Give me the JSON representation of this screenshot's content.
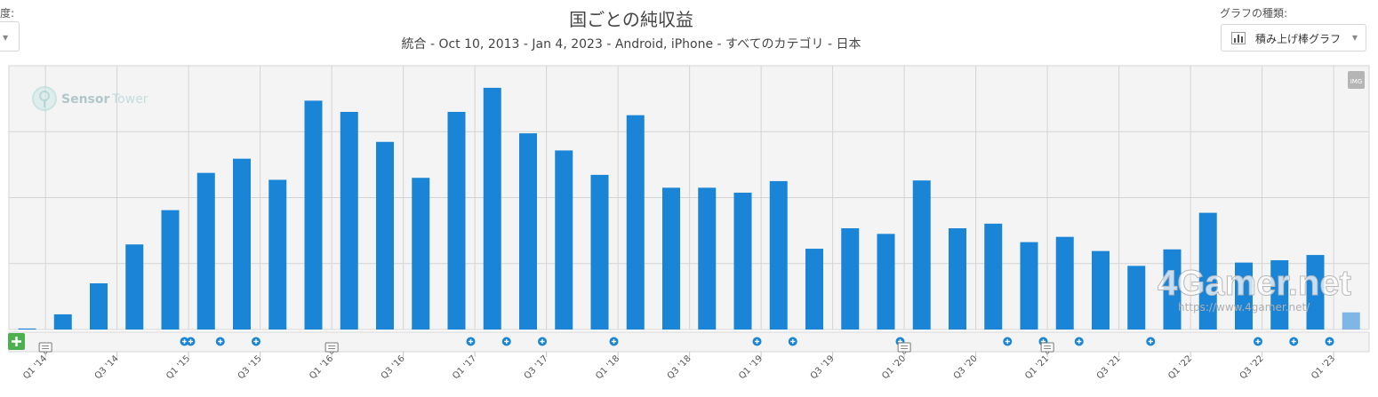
{
  "left_control": {
    "label": "度:"
  },
  "chart_type_control": {
    "label": "グラフの種類:",
    "value": "積み上げ棒グラフ",
    "icon": "bar-chart-icon"
  },
  "export_button": {
    "label": "IMG"
  },
  "watermarks": {
    "sensor_tower_a": "Sensor",
    "sensor_tower_b": "Tower",
    "fourgamer": "4Gamer.net",
    "fourgamer_url": "https://www.4gamer.net/"
  },
  "chart_data": {
    "type": "bar",
    "title": "国ごとの純収益",
    "subtitle": "統合 - Oct 10, 2013 - Jan 4, 2023 - Android, iPhone - すべてのカテゴリ - 日本",
    "categories": [
      "Q4 '13",
      "Q1 '14",
      "Q2 '14",
      "Q3 '14",
      "Q4 '14",
      "Q1 '15",
      "Q2 '15",
      "Q3 '15",
      "Q4 '15",
      "Q1 '16",
      "Q2 '16",
      "Q3 '16",
      "Q4 '16",
      "Q1 '17",
      "Q2 '17",
      "Q3 '17",
      "Q4 '17",
      "Q1 '18",
      "Q2 '18",
      "Q3 '18",
      "Q4 '18",
      "Q1 '19",
      "Q2 '19",
      "Q3 '19",
      "Q4 '19",
      "Q1 '20",
      "Q2 '20",
      "Q3 '20",
      "Q4 '20",
      "Q1 '21",
      "Q2 '21",
      "Q3 '21",
      "Q4 '21",
      "Q1 '22",
      "Q2 '22",
      "Q3 '22",
      "Q4 '22",
      "Q1 '23"
    ],
    "values": [
      0.3,
      4.6,
      14.0,
      25.8,
      36.2,
      47.5,
      51.8,
      45.4,
      69.4,
      66.0,
      56.9,
      46.0,
      66.0,
      73.3,
      59.5,
      54.3,
      46.9,
      65.0,
      43.0,
      43.0,
      41.5,
      45.0,
      24.5,
      30.7,
      29.0,
      45.2,
      30.7,
      32.1,
      26.5,
      28.1,
      23.8,
      19.3,
      24.3,
      35.4,
      20.3,
      21.0,
      22.6,
      5.2
    ],
    "partial_last_category": true,
    "x_tick_labels": [
      "Q1 '14",
      "Q3 '14",
      "Q1 '15",
      "Q3 '15",
      "Q1 '16",
      "Q3 '16",
      "Q1 '17",
      "Q3 '17",
      "Q1 '18",
      "Q3 '18",
      "Q1 '19",
      "Q3 '19",
      "Q1 '20",
      "Q3 '20",
      "Q1 '21",
      "Q3 '21",
      "Q1 '22",
      "Q3 '22",
      "Q1 '23"
    ],
    "ylim": [
      0,
      80
    ],
    "y_gridlines": [
      20,
      40,
      60,
      80
    ],
    "y_tick_labels_visible": false,
    "grid": true,
    "legend": "none",
    "bar_color": "#1a85d6",
    "partial_bar_color": "#7fb6e6",
    "event_markers": {
      "plus_at_categories": [
        4,
        5,
        6,
        12,
        13,
        14,
        16,
        20,
        21,
        24,
        27,
        28,
        29,
        31,
        34,
        35,
        36
      ],
      "plus_double_at_categories": [
        4
      ],
      "note_at_categories": [
        1,
        9,
        25,
        29
      ]
    }
  }
}
